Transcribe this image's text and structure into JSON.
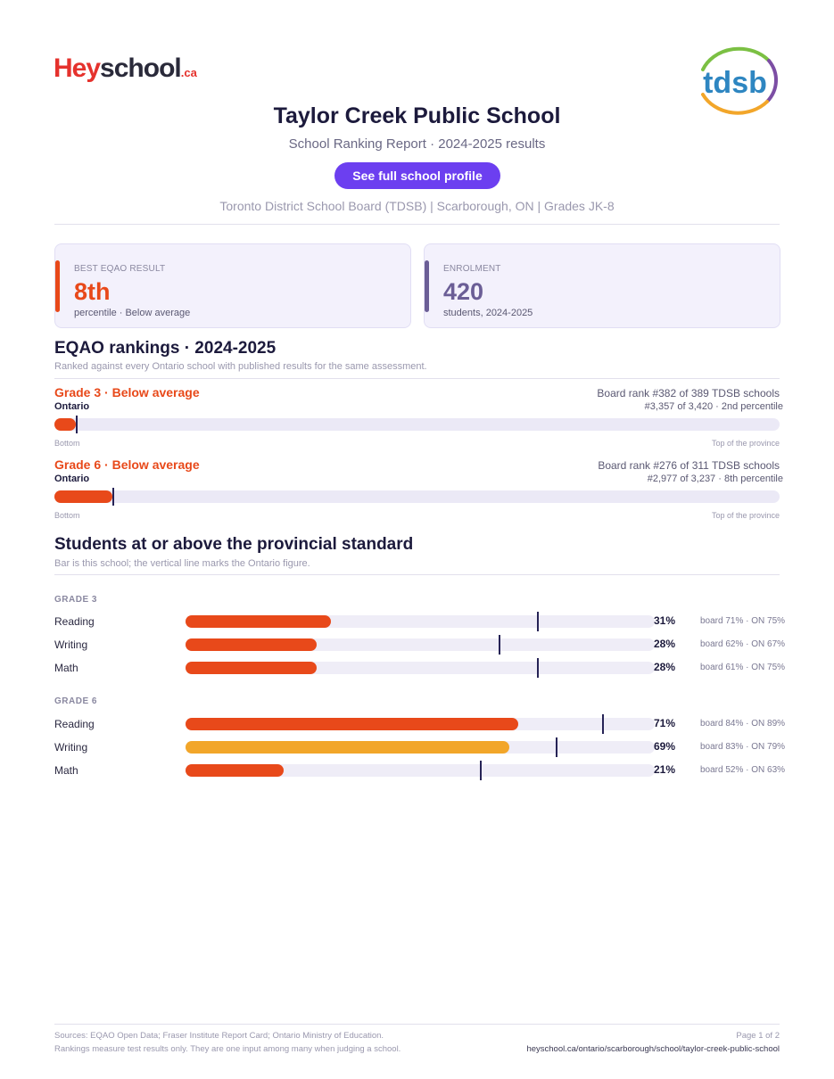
{
  "header": {
    "logo_left": {
      "part1": "Hey",
      "part2": "school",
      "part3": ".ca"
    },
    "logo_right": "tdsb",
    "title": "Taylor Creek Public School",
    "subtitle": "School Ranking Report  ·  2024-2025 results",
    "profile_button": "See full school profile",
    "meta": "Toronto District School Board (TDSB)  |  Scarborough, ON  |  Grades JK-8"
  },
  "cards": {
    "eqao": {
      "label": "BEST EQAO RESULT",
      "value": "8th",
      "sub": "percentile  ·  Below average",
      "accent": "#e8491a"
    },
    "enrolment": {
      "label": "ENROLMENT",
      "value": "420",
      "sub": "students, 2024-2025",
      "accent": "#6b5e96"
    }
  },
  "rankings": {
    "heading": "EQAO rankings  ·  2024-2025",
    "note": "Ranked against every Ontario school with published results for the same assessment.",
    "end_left": "Bottom",
    "end_right": "Top of the province",
    "grades": [
      {
        "title": "Grade 3  ·  Below average",
        "scope": "Ontario",
        "board_rank": "Board rank #382 of 389 TDSB schools",
        "prov_rank": "#3,357 of 3,420  ·  2nd percentile",
        "percentile": 2
      },
      {
        "title": "Grade 6  ·  Below average",
        "scope": "Ontario",
        "board_rank": "Board rank #276 of 311 TDSB schools",
        "prov_rank": "#2,977 of 3,237  ·  8th percentile",
        "percentile": 8
      }
    ]
  },
  "standard": {
    "heading": "Students at or above the provincial standard",
    "note": "Bar is this school; the vertical line marks the Ontario figure.",
    "groups": [
      {
        "label": "GRADE 3",
        "rows": [
          {
            "subject": "Reading",
            "pct": "31%",
            "school": 31,
            "ontario": 75,
            "compare": "board 71%  ·  ON 75%",
            "color": "#e8491a"
          },
          {
            "subject": "Writing",
            "pct": "28%",
            "school": 28,
            "ontario": 67,
            "compare": "board 62%  ·  ON 67%",
            "color": "#e8491a"
          },
          {
            "subject": "Math",
            "pct": "28%",
            "school": 28,
            "ontario": 75,
            "compare": "board 61%  ·  ON 75%",
            "color": "#e8491a"
          }
        ]
      },
      {
        "label": "GRADE 6",
        "rows": [
          {
            "subject": "Reading",
            "pct": "71%",
            "school": 71,
            "ontario": 89,
            "compare": "board 84%  ·  ON 89%",
            "color": "#e8491a"
          },
          {
            "subject": "Writing",
            "pct": "69%",
            "school": 69,
            "ontario": 79,
            "compare": "board 83%  ·  ON 79%",
            "color": "#f2a62a"
          },
          {
            "subject": "Math",
            "pct": "21%",
            "school": 21,
            "ontario": 63,
            "compare": "board 52%  ·  ON 63%",
            "color": "#e8491a"
          }
        ]
      }
    ]
  },
  "footer": {
    "sources": "Sources: EQAO Open Data; Fraser Institute Report Card; Ontario Ministry of Education.",
    "disclaimer": "Rankings measure test results only. They are one input among many when judging a school.",
    "page": "Page 1 of 2",
    "url": "heyschool.ca/ontario/scarborough/school/taylor-creek-public-school"
  }
}
